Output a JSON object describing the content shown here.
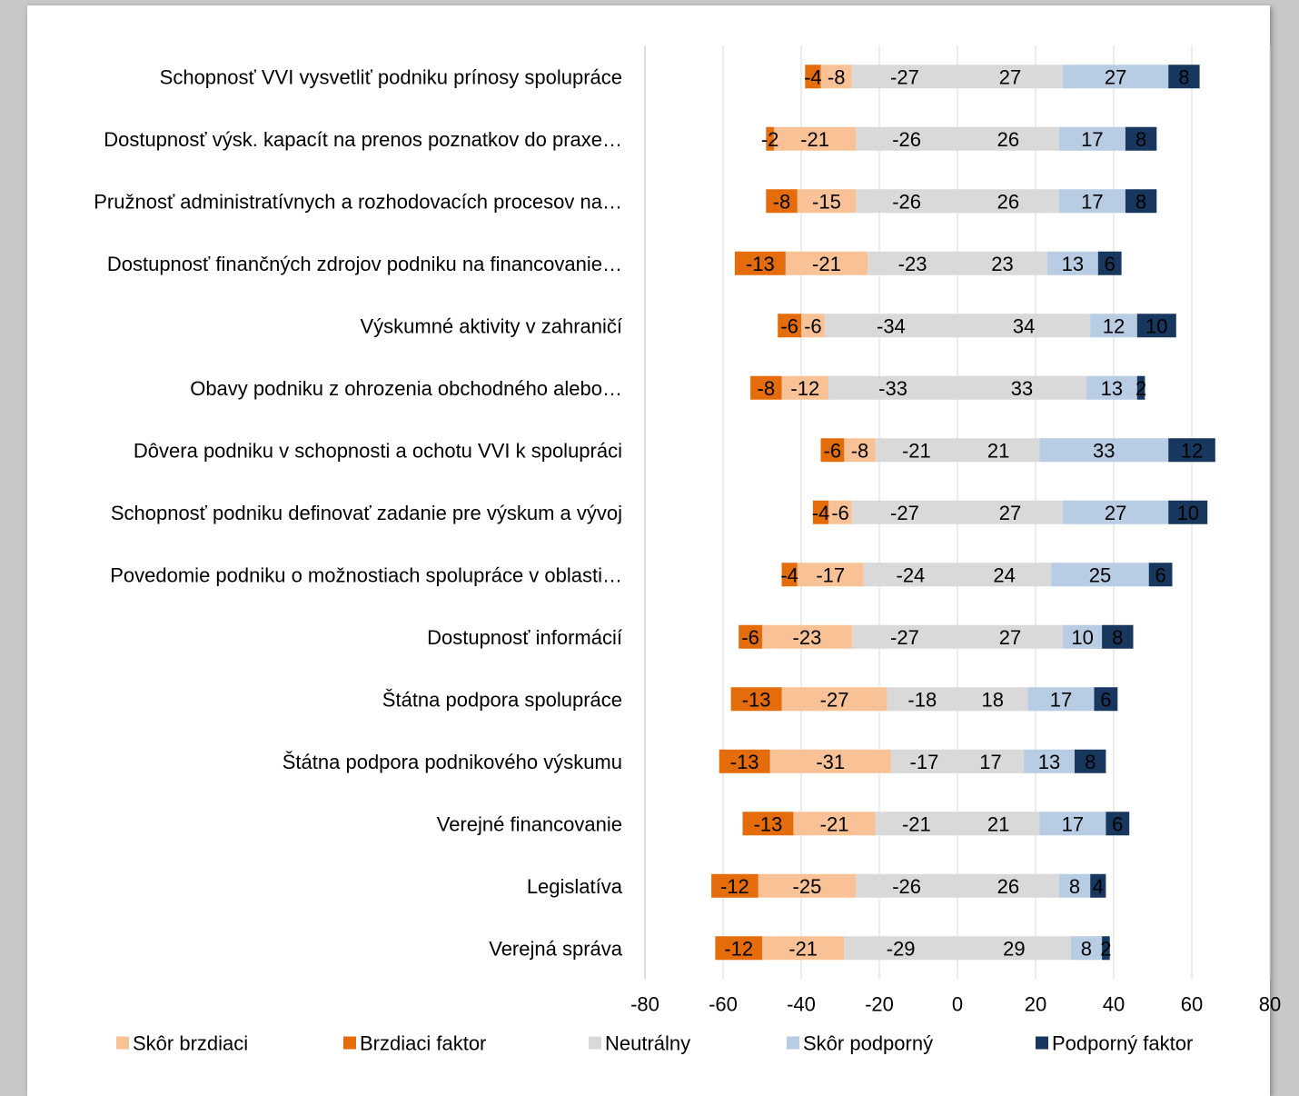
{
  "chart_data": {
    "type": "bar",
    "orientation": "horizontal",
    "stacking": "diverging",
    "title": "",
    "xlabel": "",
    "ylabel": "",
    "xlim": [
      -80,
      80
    ],
    "x_ticks": [
      -80,
      -60,
      -40,
      -20,
      0,
      20,
      40,
      60,
      80
    ],
    "grid": true,
    "legend_position": "bottom",
    "categories": [
      "Schopnosť VVI vysvetliť podniku prínosy spolupráce",
      "Dostupnosť výsk. kapacít na prenos poznatkov do praxe…",
      "Pružnosť administratívnych a rozhodovacích procesov na…",
      "Dostupnosť finančných zdrojov podniku na financovanie…",
      "Výskumné aktivity v zahraničí",
      "Obavy podniku z ohrozenia obchodného alebo…",
      "Dôvera podniku v schopnosti a ochotu VVI k spolupráci",
      "Schopnosť podniku definovať zadanie pre výskum a vývoj",
      "Povedomie podniku o možnostiach spolupráce v oblasti…",
      "Dostupnosť informácií",
      "Štátna podpora spolupráce",
      "Štátna podpora podnikového výskumu",
      "Verejné financovanie",
      "Legislatíva",
      "Verejná správa"
    ],
    "series": [
      {
        "name": "Skôr brzdiaci",
        "color": "#f8c296",
        "values": [
          -8,
          -21,
          -15,
          -21,
          -6,
          -12,
          -8,
          -6,
          -17,
          -23,
          -27,
          -31,
          -21,
          -25,
          -21
        ]
      },
      {
        "name": "Brzdiaci faktor",
        "color": "#e46c0a",
        "values": [
          -4,
          -2,
          -8,
          -13,
          -6,
          -8,
          -6,
          -4,
          -4,
          -6,
          -13,
          -13,
          -13,
          -12,
          -12
        ]
      },
      {
        "name": "Neutrálny",
        "color": "#d9d9d9",
        "negative_values": [
          -27,
          -26,
          -26,
          -23,
          -34,
          -33,
          -21,
          -27,
          -24,
          -27,
          -18,
          -17,
          -21,
          -26,
          -29
        ],
        "values": [
          27,
          26,
          26,
          23,
          34,
          33,
          21,
          27,
          24,
          27,
          18,
          17,
          21,
          26,
          29
        ]
      },
      {
        "name": "Skôr podporný",
        "color": "#b8cce4",
        "values": [
          27,
          17,
          17,
          13,
          12,
          13,
          33,
          27,
          25,
          10,
          17,
          13,
          17,
          8,
          8
        ]
      },
      {
        "name": "Podporný faktor",
        "color": "#17375e",
        "values": [
          8,
          8,
          8,
          6,
          10,
          2,
          12,
          10,
          6,
          8,
          6,
          8,
          6,
          4,
          2
        ]
      }
    ]
  }
}
